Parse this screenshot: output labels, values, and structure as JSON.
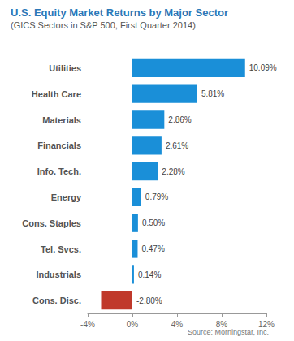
{
  "chart_data": {
    "type": "bar",
    "orientation": "horizontal",
    "title": "U.S. Equity Market Returns by Major Sector",
    "subtitle": "(GICS Sectors in S&P 500, First Quarter 2014)",
    "source": "Source: Morningstar, Inc.",
    "categories": [
      "Utilities",
      "Health Care",
      "Materials",
      "Financials",
      "Info. Tech.",
      "Energy",
      "Cons. Staples",
      "Tel. Svcs.",
      "Industrials",
      "Cons. Disc."
    ],
    "values": [
      10.09,
      5.81,
      2.86,
      2.61,
      2.28,
      0.79,
      0.5,
      0.47,
      0.14,
      -2.8
    ],
    "value_labels": [
      "10.09%",
      "5.81%",
      "2.86%",
      "2.61%",
      "2.28%",
      "0.79%",
      "0.50%",
      "0.47%",
      "0.14%",
      "-2.80%"
    ],
    "colors": [
      "#1a8fd8",
      "#1a8fd8",
      "#1a8fd8",
      "#1a8fd8",
      "#1a8fd8",
      "#1a8fd8",
      "#1a8fd8",
      "#1a8fd8",
      "#1a8fd8",
      "#c0392b"
    ],
    "data_labels": true,
    "grid": false,
    "xlim": [
      -4,
      12
    ],
    "xticks": [
      {
        "value": -4,
        "label": "-4%"
      },
      {
        "value": 0,
        "label": "0%"
      },
      {
        "value": 4,
        "label": "4%"
      },
      {
        "value": 8,
        "label": "8%"
      },
      {
        "value": 12,
        "label": "12%"
      }
    ]
  }
}
